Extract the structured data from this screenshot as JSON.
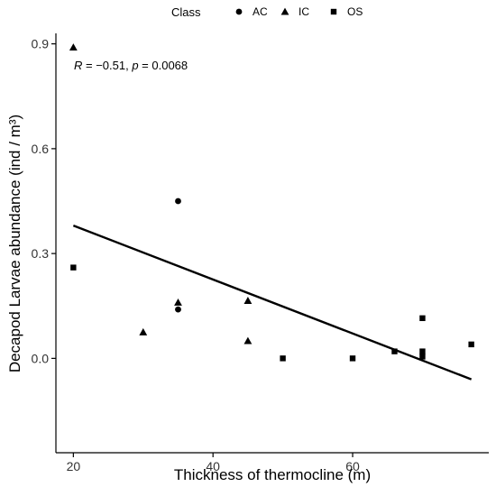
{
  "chart_data": {
    "type": "scatter",
    "xlabel": "Thickness of thermocline (m)",
    "ylabel": "Decapod Larvae abundance (ind / m³)",
    "xlim": [
      17.5,
      79.5
    ],
    "ylim": [
      -0.27,
      0.93
    ],
    "xticks": [
      20,
      40,
      60
    ],
    "yticks": [
      0.0,
      0.3,
      0.6,
      0.9
    ],
    "ytick_labels": [
      "0.0",
      "0.3",
      "0.6",
      "0.9"
    ],
    "grid": false,
    "legend": {
      "title": "Class",
      "position": "top",
      "entries": [
        {
          "label": "AC",
          "marker": "circle"
        },
        {
          "label": "IC",
          "marker": "triangle"
        },
        {
          "label": "OS",
          "marker": "square"
        }
      ]
    },
    "series": [
      {
        "name": "AC",
        "marker": "circle",
        "points": [
          [
            35,
            0.45
          ],
          [
            35,
            0.14
          ]
        ]
      },
      {
        "name": "IC",
        "marker": "triangle",
        "points": [
          [
            20,
            0.89
          ],
          [
            30,
            0.075
          ],
          [
            35,
            0.16
          ],
          [
            45,
            0.165
          ],
          [
            45,
            0.05
          ]
        ]
      },
      {
        "name": "OS",
        "marker": "square",
        "points": [
          [
            20,
            0.26
          ],
          [
            50,
            0.0
          ],
          [
            60,
            0.0
          ],
          [
            66,
            0.02
          ],
          [
            70,
            0.115
          ],
          [
            70,
            0.02
          ],
          [
            70,
            0.005
          ],
          [
            77,
            0.04
          ]
        ]
      }
    ],
    "trendline": {
      "x": [
        20,
        77
      ],
      "y": [
        0.38,
        -0.06
      ]
    },
    "annotation": {
      "r_label": "R",
      "r_value": " = −0.51, ",
      "p_label": "p",
      "p_value": " = 0.0068"
    },
    "color": "#000000"
  }
}
